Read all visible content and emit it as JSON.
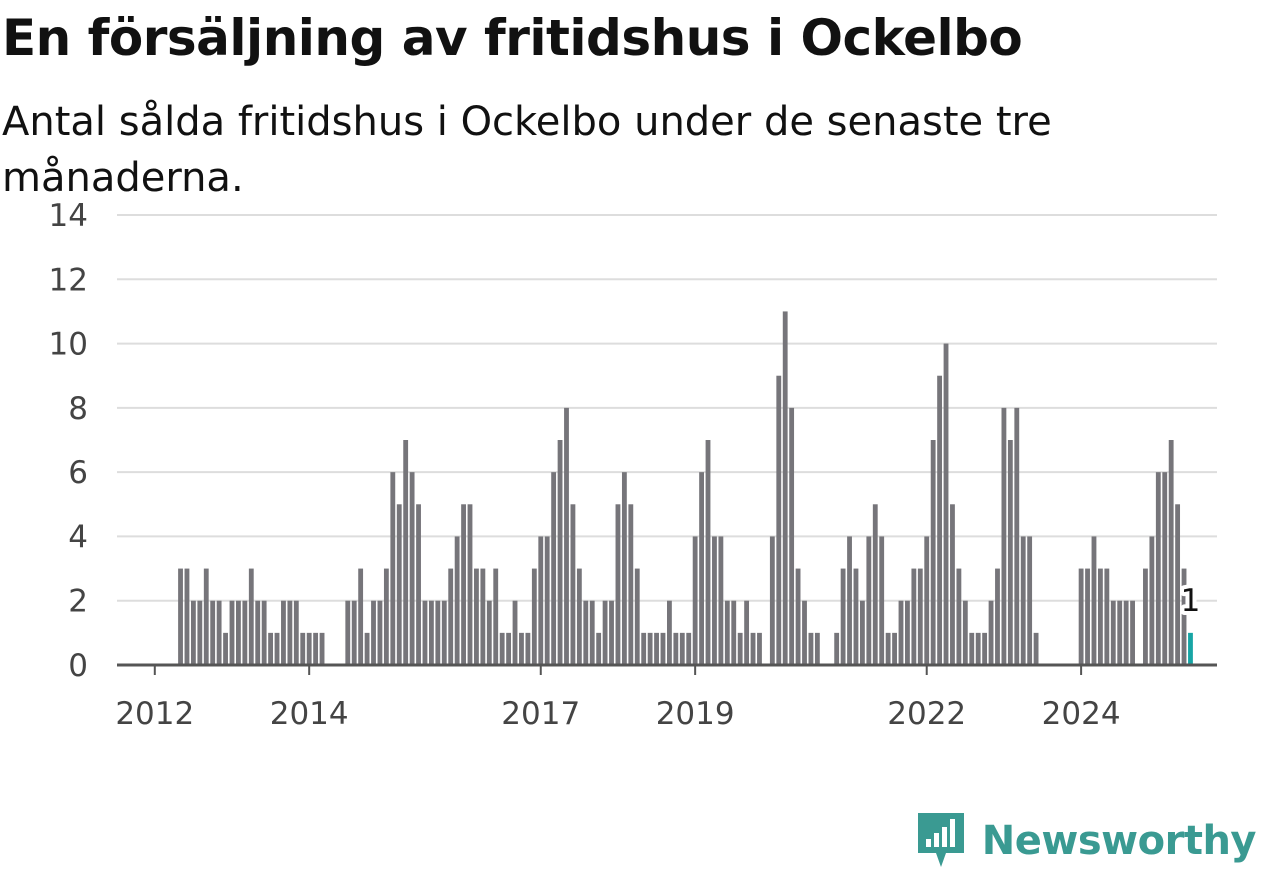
{
  "header": {
    "title": "En försäljning av fritidshus i Ockelbo",
    "subtitle": "Antal sålda fritidshus i Ockelbo under de senaste tre månaderna."
  },
  "brand": {
    "name": "Newsworthy",
    "logo_icon": "bar-chart-speech-bubble-icon",
    "color": "#3a9a92"
  },
  "colors": {
    "bar": "#76757a",
    "highlight": "#17a5a5",
    "grid": "#dddddd",
    "axis": "#555555"
  },
  "chart_data": {
    "type": "bar",
    "x_unit": "month",
    "start": "2011-09",
    "values": [
      0,
      0,
      0,
      0,
      0,
      0,
      0,
      0,
      3,
      3,
      2,
      2,
      3,
      2,
      2,
      1,
      2,
      2,
      2,
      3,
      2,
      2,
      1,
      1,
      2,
      2,
      2,
      1,
      1,
      1,
      1,
      0,
      0,
      0,
      2,
      2,
      3,
      1,
      2,
      2,
      3,
      6,
      5,
      7,
      6,
      5,
      2,
      2,
      2,
      2,
      3,
      4,
      5,
      5,
      3,
      3,
      2,
      3,
      1,
      1,
      2,
      1,
      1,
      3,
      4,
      4,
      6,
      7,
      8,
      5,
      3,
      2,
      2,
      1,
      2,
      2,
      5,
      6,
      5,
      3,
      1,
      1,
      1,
      1,
      2,
      1,
      1,
      1,
      4,
      6,
      7,
      4,
      4,
      2,
      2,
      1,
      2,
      1,
      1,
      0,
      4,
      9,
      11,
      8,
      3,
      2,
      1,
      1,
      0,
      0,
      1,
      3,
      4,
      3,
      2,
      4,
      5,
      4,
      1,
      1,
      2,
      2,
      3,
      3,
      4,
      7,
      9,
      10,
      5,
      3,
      2,
      1,
      1,
      1,
      2,
      3,
      8,
      7,
      8,
      4,
      4,
      1,
      0,
      0,
      0,
      0,
      0,
      0,
      3,
      3,
      4,
      3,
      3,
      2,
      2,
      2,
      2,
      0,
      3,
      4,
      6,
      6,
      7,
      5,
      3,
      1
    ],
    "highlight_last": true,
    "annotation": {
      "label": "1"
    },
    "xticks": [
      {
        "label": "2012",
        "value": "2012-01"
      },
      {
        "label": "2014",
        "value": "2014-01"
      },
      {
        "label": "2017",
        "value": "2017-01"
      },
      {
        "label": "2019",
        "value": "2019-01"
      },
      {
        "label": "2022",
        "value": "2022-01"
      },
      {
        "label": "2024",
        "value": "2024-01"
      }
    ],
    "ylim": [
      0,
      14
    ],
    "yticks": [
      0,
      2,
      4,
      6,
      8,
      10,
      12,
      14
    ],
    "grid": true,
    "xlabel": "",
    "ylabel": "",
    "legend": "none"
  }
}
